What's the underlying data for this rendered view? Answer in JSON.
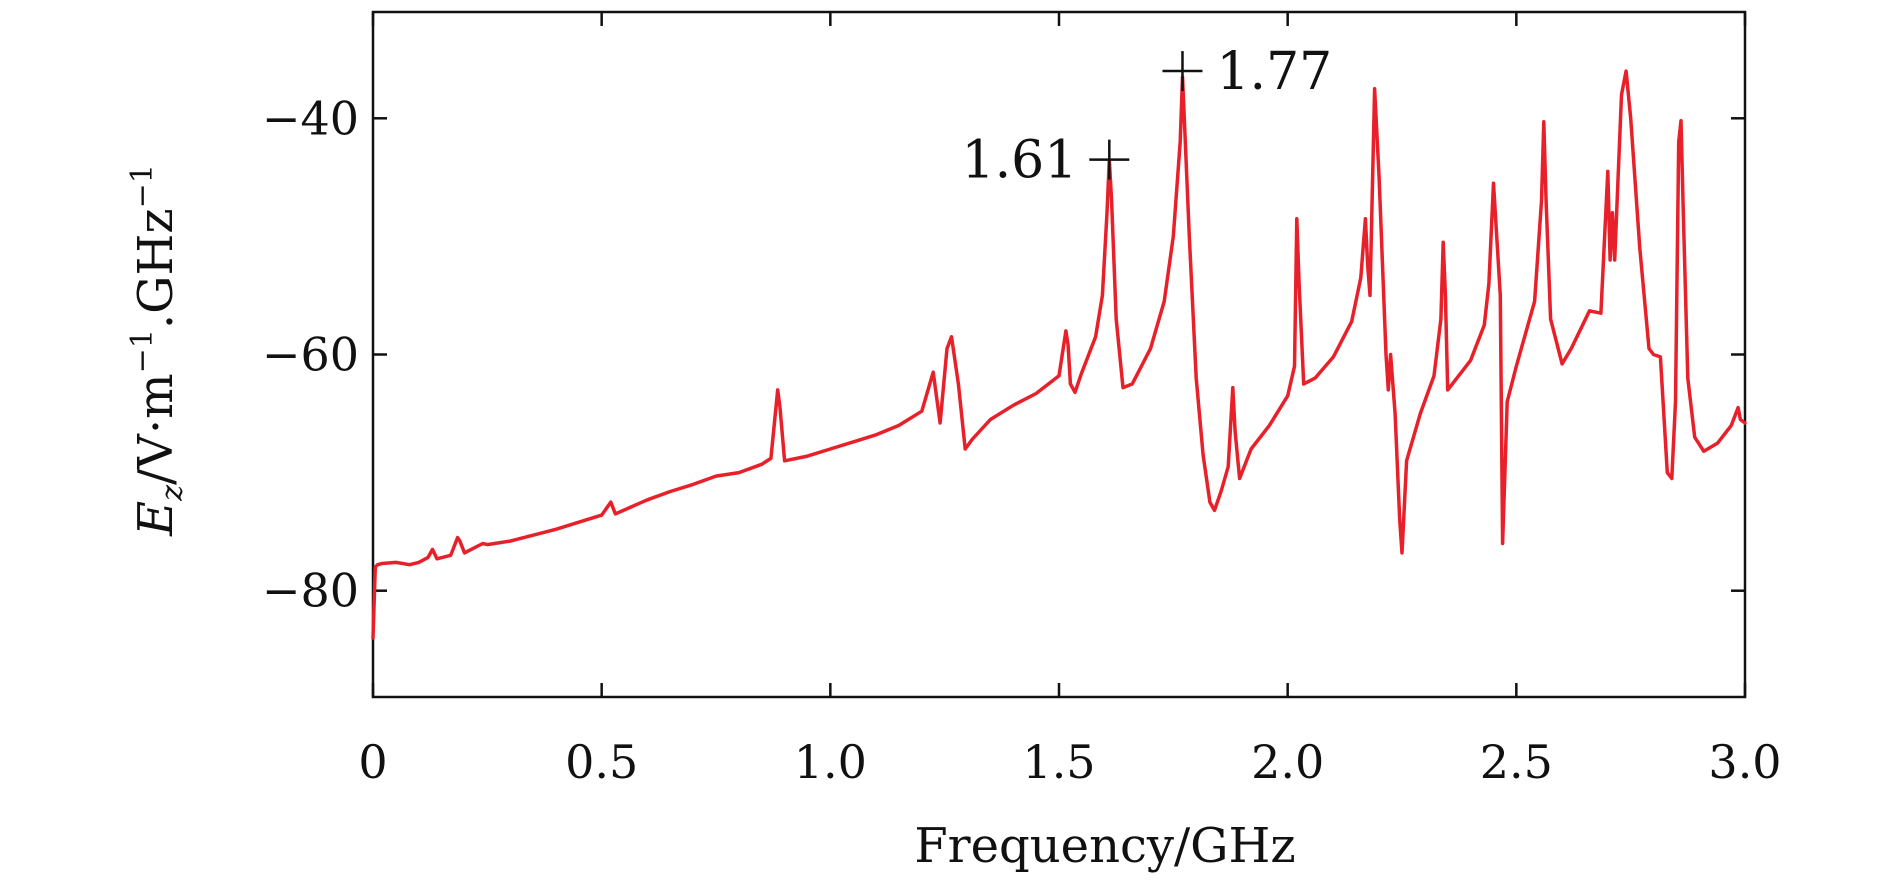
{
  "chart_data": {
    "type": "line",
    "xlabel": "Frequency/GHz",
    "ylabel_parts": {
      "base": "E",
      "sub": "z",
      "unit_a": "/V·m",
      "exp_a": "−1",
      "unit_b": ".GHz",
      "exp_b": "−1"
    },
    "xlim": [
      0,
      3.0
    ],
    "ylim": [
      -89,
      -31
    ],
    "xticks": [
      0,
      0.5,
      1.0,
      1.5,
      2.0,
      2.5,
      3.0
    ],
    "xtick_labels": [
      "0",
      "0.5",
      "1.0",
      "1.5",
      "2.0",
      "2.5",
      "3.0"
    ],
    "yticks": [
      -40,
      -60,
      -80
    ],
    "ytick_labels": [
      "−40",
      "−60",
      "−80"
    ],
    "grid": false,
    "line_color": "#e8202a",
    "annotations": [
      {
        "label": "1.61",
        "x": 1.61,
        "y": -43.5,
        "side": "left"
      },
      {
        "label": "1.77",
        "x": 1.77,
        "y": -36.0,
        "side": "right"
      }
    ],
    "series": [
      {
        "x": [
          0.0,
          0.005,
          0.01,
          0.02,
          0.05,
          0.08,
          0.1,
          0.12,
          0.13,
          0.14,
          0.17,
          0.185,
          0.19,
          0.2,
          0.21,
          0.24,
          0.25,
          0.3,
          0.35,
          0.4,
          0.45,
          0.5,
          0.52,
          0.53,
          0.6,
          0.65,
          0.7,
          0.75,
          0.8,
          0.85,
          0.87,
          0.885,
          0.89,
          0.9,
          0.95,
          1.0,
          1.05,
          1.1,
          1.15,
          1.2,
          1.225,
          1.24,
          1.255,
          1.265,
          1.28,
          1.295,
          1.31,
          1.35,
          1.4,
          1.45,
          1.5,
          1.515,
          1.52,
          1.525,
          1.535,
          1.55,
          1.58,
          1.595,
          1.605,
          1.61,
          1.615,
          1.625,
          1.64,
          1.66,
          1.7,
          1.73,
          1.75,
          1.765,
          1.77,
          1.775,
          1.785,
          1.8,
          1.815,
          1.83,
          1.84,
          1.855,
          1.87,
          1.88,
          1.885,
          1.895,
          1.92,
          1.96,
          2.0,
          2.015,
          2.02,
          2.025,
          2.035,
          2.06,
          2.1,
          2.14,
          2.16,
          2.17,
          2.175,
          2.18,
          2.19,
          2.2,
          2.215,
          2.22,
          2.225,
          2.235,
          2.245,
          2.25,
          2.26,
          2.29,
          2.32,
          2.335,
          2.34,
          2.345,
          2.35,
          2.4,
          2.43,
          2.44,
          2.45,
          2.465,
          2.47,
          2.48,
          2.5,
          2.54,
          2.555,
          2.56,
          2.565,
          2.575,
          2.6,
          2.62,
          2.66,
          2.685,
          2.7,
          2.705,
          2.71,
          2.715,
          2.73,
          2.74,
          2.75,
          2.77,
          2.79,
          2.8,
          2.815,
          2.83,
          2.84,
          2.848,
          2.855,
          2.86,
          2.865,
          2.875,
          2.89,
          2.91,
          2.94,
          2.97,
          2.985,
          2.99,
          3.0
        ],
        "y": [
          -84,
          -78,
          -77.8,
          -77.7,
          -77.6,
          -77.8,
          -77.6,
          -77.2,
          -76.5,
          -77.3,
          -77.0,
          -75.5,
          -75.8,
          -76.8,
          -76.6,
          -76.0,
          -76.1,
          -75.8,
          -75.3,
          -74.8,
          -74.2,
          -73.6,
          -72.5,
          -73.5,
          -72.3,
          -71.6,
          -71.0,
          -70.3,
          -70.0,
          -69.3,
          -68.8,
          -63.0,
          -64.5,
          -69.0,
          -68.6,
          -68.0,
          -67.4,
          -66.8,
          -66.0,
          -64.8,
          -61.5,
          -65.8,
          -59.5,
          -58.5,
          -62.5,
          -68.0,
          -67.2,
          -65.5,
          -64.3,
          -63.3,
          -61.8,
          -58.0,
          -59.2,
          -62.5,
          -63.2,
          -61.5,
          -58.5,
          -55.0,
          -48.0,
          -43.5,
          -47.0,
          -57.0,
          -62.8,
          -62.5,
          -59.5,
          -55.5,
          -50.0,
          -42.0,
          -36.5,
          -41.0,
          -50.0,
          -62.0,
          -68.5,
          -72.5,
          -73.2,
          -71.5,
          -69.5,
          -62.8,
          -66.5,
          -70.5,
          -68.0,
          -66.0,
          -63.5,
          -61.0,
          -48.5,
          -54.0,
          -62.5,
          -62.0,
          -60.2,
          -57.2,
          -53.5,
          -48.5,
          -52.5,
          -55.0,
          -37.5,
          -45.0,
          -60.0,
          -63.0,
          -60.0,
          -65.0,
          -74.0,
          -76.8,
          -69.0,
          -65.0,
          -61.8,
          -57.0,
          -50.5,
          -55.0,
          -63.0,
          -60.5,
          -57.5,
          -54.0,
          -45.5,
          -55.0,
          -76.0,
          -64.0,
          -61.0,
          -55.5,
          -47.0,
          -40.3,
          -47.0,
          -57.0,
          -60.8,
          -59.5,
          -56.3,
          -56.5,
          -44.5,
          -52.0,
          -48.0,
          -52.0,
          -38.0,
          -36.0,
          -40.0,
          -51.0,
          -59.5,
          -60.0,
          -60.2,
          -70.0,
          -70.5,
          -64.0,
          -42.0,
          -40.2,
          -48.0,
          -62.0,
          -67.0,
          -68.2,
          -67.5,
          -66.0,
          -64.5,
          -65.5,
          -65.8
        ]
      }
    ]
  }
}
